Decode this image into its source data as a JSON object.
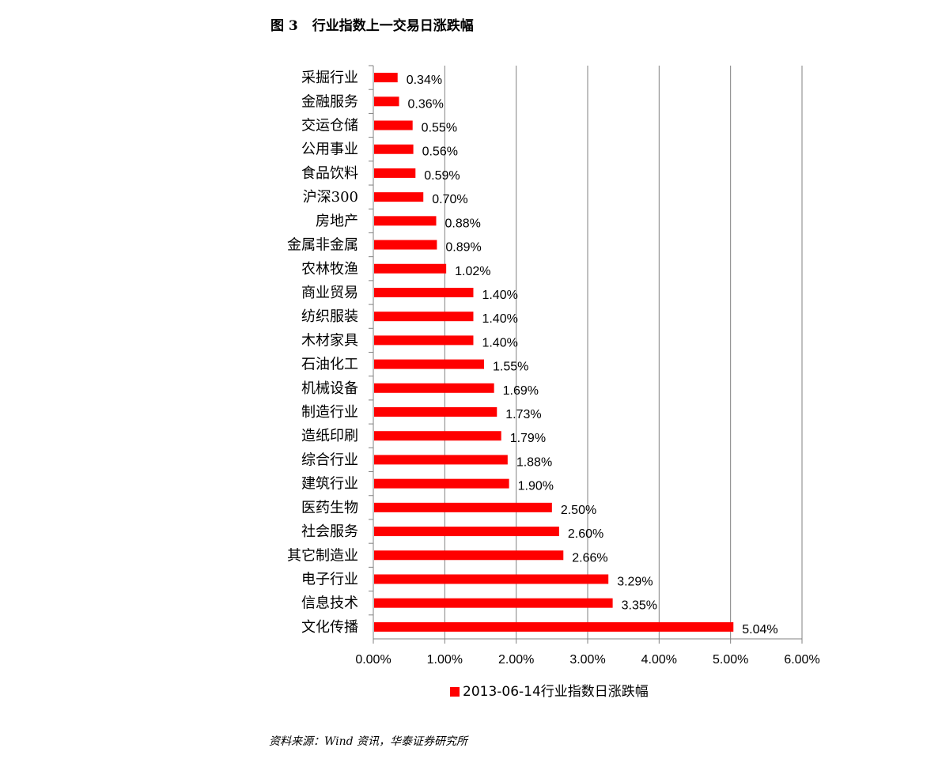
{
  "figure": {
    "label": "图 3",
    "title": "行业指数上一交易日涨跌幅",
    "source": "资料来源：Wind 资讯，华泰证券研究所"
  },
  "colors": {
    "bar": "#ff0000",
    "grid": "#808080",
    "axis": "#808080"
  },
  "chart_data": {
    "type": "bar",
    "orientation": "horizontal",
    "categories": [
      "采掘行业",
      "金融服务",
      "交运仓储",
      "公用事业",
      "食品饮料",
      "沪深300",
      "房地产",
      "金属非金属",
      "农林牧渔",
      "商业贸易",
      "纺织服装",
      "木材家具",
      "石油化工",
      "机械设备",
      "制造行业",
      "造纸印刷",
      "综合行业",
      "建筑行业",
      "医药生物",
      "社会服务",
      "其它制造业",
      "电子行业",
      "信息技术",
      "文化传播"
    ],
    "series": [
      {
        "name": "2013-06-14行业指数日涨跌幅",
        "values": [
          0.34,
          0.36,
          0.55,
          0.56,
          0.59,
          0.7,
          0.88,
          0.89,
          1.02,
          1.4,
          1.4,
          1.4,
          1.55,
          1.69,
          1.73,
          1.79,
          1.88,
          1.9,
          2.5,
          2.6,
          2.66,
          3.29,
          3.35,
          5.04
        ],
        "labels": [
          "0.34%",
          "0.36%",
          "0.55%",
          "0.56%",
          "0.59%",
          "0.70%",
          "0.88%",
          "0.89%",
          "1.02%",
          "1.40%",
          "1.40%",
          "1.40%",
          "1.55%",
          "1.69%",
          "1.73%",
          "1.79%",
          "1.88%",
          "1.90%",
          "2.50%",
          "2.60%",
          "2.66%",
          "3.29%",
          "3.35%",
          "5.04%"
        ]
      }
    ],
    "xlim": [
      0,
      6
    ],
    "xticks": [
      0,
      1,
      2,
      3,
      4,
      5,
      6
    ],
    "xtick_labels": [
      "0.00%",
      "1.00%",
      "2.00%",
      "3.00%",
      "4.00%",
      "5.00%",
      "6.00%"
    ],
    "grid": "vertical",
    "legend": "bottom"
  }
}
